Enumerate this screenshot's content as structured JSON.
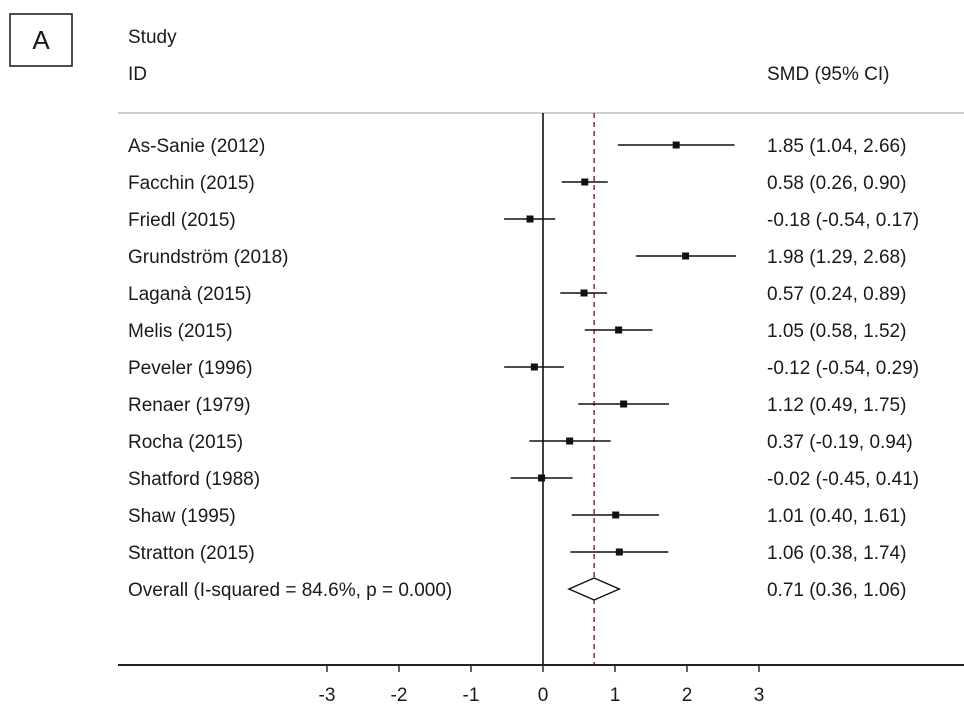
{
  "panel_label": "A",
  "chart_data": {
    "type": "forest",
    "header": {
      "study_line1": "Study",
      "study_line2": "ID",
      "estimate": "SMD (95% CI)"
    },
    "x_ticks": [
      -3,
      -2,
      -1,
      0,
      1,
      2,
      3
    ],
    "xlim": [
      -3.3,
      3.3
    ],
    "null_line": 0,
    "pooled_line": 0.71,
    "studies": [
      {
        "label": "As-Sanie (2012)",
        "smd": 1.85,
        "lo": 1.04,
        "hi": 2.66,
        "text": "1.85 (1.04, 2.66)"
      },
      {
        "label": "Facchin (2015)",
        "smd": 0.58,
        "lo": 0.26,
        "hi": 0.9,
        "text": "0.58 (0.26, 0.90)"
      },
      {
        "label": "Friedl (2015)",
        "smd": -0.18,
        "lo": -0.54,
        "hi": 0.17,
        "text": "-0.18 (-0.54, 0.17)"
      },
      {
        "label": "Grundström (2018)",
        "smd": 1.98,
        "lo": 1.29,
        "hi": 2.68,
        "text": "1.98 (1.29, 2.68)"
      },
      {
        "label": "Laganà (2015)",
        "smd": 0.57,
        "lo": 0.24,
        "hi": 0.89,
        "text": "0.57 (0.24, 0.89)"
      },
      {
        "label": "Melis (2015)",
        "smd": 1.05,
        "lo": 0.58,
        "hi": 1.52,
        "text": "1.05 (0.58, 1.52)"
      },
      {
        "label": "Peveler (1996)",
        "smd": -0.12,
        "lo": -0.54,
        "hi": 0.29,
        "text": "-0.12 (-0.54, 0.29)"
      },
      {
        "label": "Renaer (1979)",
        "smd": 1.12,
        "lo": 0.49,
        "hi": 1.75,
        "text": "1.12 (0.49, 1.75)"
      },
      {
        "label": "Rocha (2015)",
        "smd": 0.37,
        "lo": -0.19,
        "hi": 0.94,
        "text": "0.37 (-0.19, 0.94)"
      },
      {
        "label": "Shatford (1988)",
        "smd": -0.02,
        "lo": -0.45,
        "hi": 0.41,
        "text": "-0.02 (-0.45, 0.41)"
      },
      {
        "label": "Shaw (1995)",
        "smd": 1.01,
        "lo": 0.4,
        "hi": 1.61,
        "text": "1.01 (0.40, 1.61)"
      },
      {
        "label": "Stratton (2015)",
        "smd": 1.06,
        "lo": 0.38,
        "hi": 1.74,
        "text": "1.06 (0.38, 1.74)"
      }
    ],
    "overall": {
      "label": "Overall  (I-squared = 84.6%, p = 0.000)",
      "smd": 0.71,
      "lo": 0.36,
      "hi": 1.06,
      "text": "0.71 (0.36, 1.06)"
    }
  }
}
